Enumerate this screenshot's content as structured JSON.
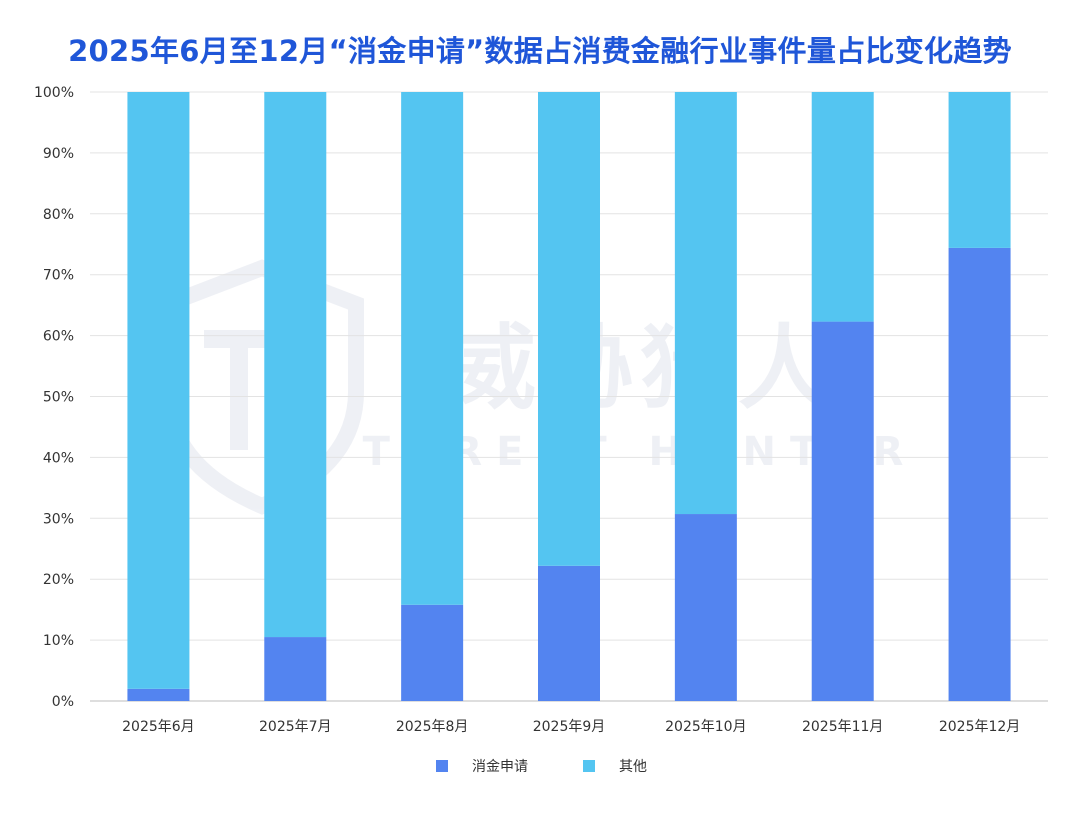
{
  "chart_data": {
    "type": "bar",
    "stacked": true,
    "title": "2025年6月至12月“消金申请”数据占消费金融行业事件量占比变化趋势",
    "xlabel": "",
    "ylabel": "",
    "ylim": [
      0,
      100
    ],
    "y_unit": "%",
    "yticks": [
      "0%",
      "10%",
      "20%",
      "30%",
      "40%",
      "50%",
      "60%",
      "70%",
      "80%",
      "90%",
      "100%"
    ],
    "categories": [
      "2025年6月",
      "2025年7月",
      "2025年8月",
      "2025年9月",
      "2025年10月",
      "2025年11月",
      "2025年12月"
    ],
    "series": [
      {
        "name": "消金申请",
        "color": "#5384f0",
        "values": [
          2.0,
          10.5,
          15.8,
          22.2,
          30.7,
          62.3,
          74.4
        ]
      },
      {
        "name": "其他",
        "color": "#54c5f1",
        "values": [
          98.0,
          89.5,
          84.2,
          77.8,
          69.3,
          37.7,
          25.6
        ]
      }
    ],
    "legend": {
      "position": "bottom"
    },
    "grid": true,
    "watermark": {
      "text_cn": "威胁猎人",
      "text_en": "THREAT HUNTER"
    }
  }
}
